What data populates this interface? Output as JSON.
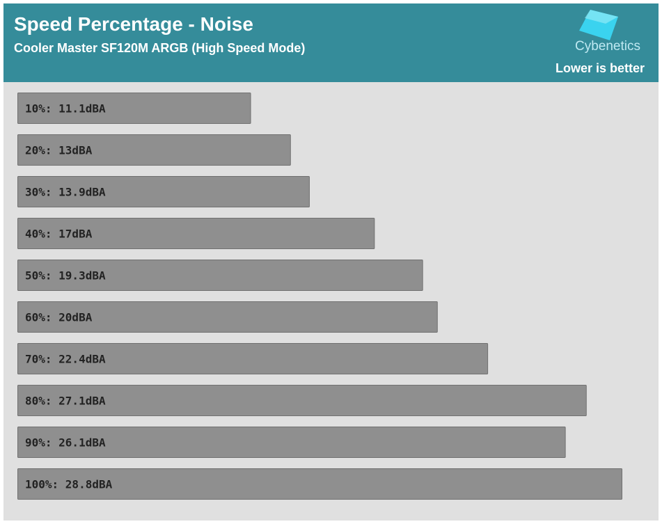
{
  "chart_data": {
    "type": "bar",
    "orientation": "horizontal",
    "title": "Speed Percentage - Noise",
    "subtitle": "Cooler Master SF120M ARGB (High Speed Mode)",
    "brand": "Cybenetics",
    "note": "Lower is better",
    "categories": [
      "10%",
      "20%",
      "30%",
      "40%",
      "50%",
      "60%",
      "70%",
      "80%",
      "90%",
      "100%"
    ],
    "values": [
      11.1,
      13,
      13.9,
      17,
      19.3,
      20,
      22.4,
      27.1,
      26.1,
      28.8
    ],
    "value_labels": [
      "10%: 11.1dBA",
      "20%: 13dBA",
      "30%: 13.9dBA",
      "40%: 17dBA",
      "50%: 19.3dBA",
      "60%: 20dBA",
      "70%: 22.4dBA",
      "80%: 27.1dBA",
      "90%: 26.1dBA",
      "100%: 28.8dBA"
    ],
    "color": "#8f8f8f"
  }
}
